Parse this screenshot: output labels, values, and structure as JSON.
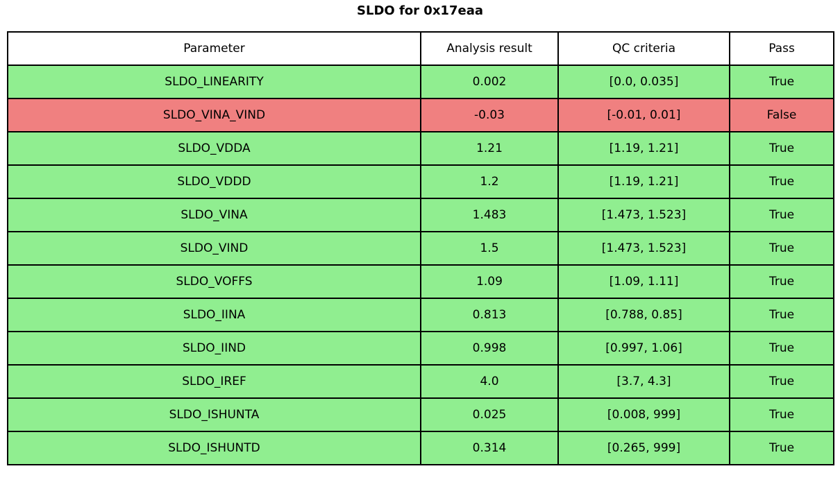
{
  "chart_data": {
    "type": "table",
    "title": "SLDO for 0x17eaa",
    "columns": [
      "Parameter",
      "Analysis result",
      "QC criteria",
      "Pass"
    ],
    "rows": [
      [
        "SLDO_LINEARITY",
        "0.002",
        "[0.0, 0.035]",
        "True"
      ],
      [
        "SLDO_VINA_VIND",
        "-0.03",
        "[-0.01, 0.01]",
        "False"
      ],
      [
        "SLDO_VDDA",
        "1.21",
        "[1.19, 1.21]",
        "True"
      ],
      [
        "SLDO_VDDD",
        "1.2",
        "[1.19, 1.21]",
        "True"
      ],
      [
        "SLDO_VINA",
        "1.483",
        "[1.473, 1.523]",
        "True"
      ],
      [
        "SLDO_VIND",
        "1.5",
        "[1.473, 1.523]",
        "True"
      ],
      [
        "SLDO_VOFFS",
        "1.09",
        "[1.09, 1.11]",
        "True"
      ],
      [
        "SLDO_IINA",
        "0.813",
        "[0.788, 0.85]",
        "True"
      ],
      [
        "SLDO_IIND",
        "0.998",
        "[0.997, 1.06]",
        "True"
      ],
      [
        "SLDO_IREF",
        "4.0",
        "[3.7, 4.3]",
        "True"
      ],
      [
        "SLDO_ISHUNTA",
        "0.025",
        "[0.008, 999]",
        "True"
      ],
      [
        "SLDO_ISHUNTD",
        "0.314",
        "[0.265, 999]",
        "True"
      ]
    ],
    "row_status": [
      "pass",
      "fail",
      "pass",
      "pass",
      "pass",
      "pass",
      "pass",
      "pass",
      "pass",
      "pass",
      "pass",
      "pass"
    ],
    "layout": {
      "legend": "none",
      "grid": "full-borders",
      "header_position": "top"
    },
    "colors": {
      "pass_row": "#90ee90",
      "fail_row": "#f08080",
      "header_bg": "#ffffff",
      "border": "#000000",
      "text": "#000000"
    }
  }
}
